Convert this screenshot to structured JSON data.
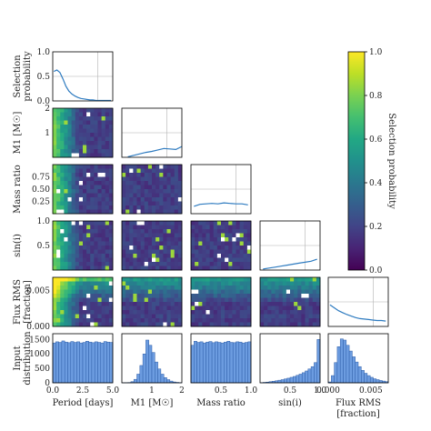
{
  "colors": {
    "line": "#2e7bc0",
    "bar_fill": "#6c9ce0",
    "bar_edge": "#2e5ea8",
    "grid": "#b0b0b0"
  },
  "chart_data": {
    "type": "corner",
    "variables": [
      {
        "key": "period",
        "label": "Period [days]",
        "range": [
          0,
          5
        ],
        "ticks": [
          "0.0",
          "2.5",
          "5.0"
        ]
      },
      {
        "key": "m1",
        "label": "M1 [M☉]",
        "range": [
          0,
          2
        ],
        "ticks": [
          "1",
          "2"
        ]
      },
      {
        "key": "q",
        "label": "Mass ratio",
        "range": [
          0,
          1
        ],
        "ticks": [
          "0.5",
          "1.0"
        ]
      },
      {
        "key": "sini",
        "label": "sin(i)",
        "range": [
          0,
          1
        ],
        "ticks": [
          "0.5",
          "1.0"
        ]
      },
      {
        "key": "frms",
        "label": "Flux RMS",
        "label2": "[fraction]",
        "range": [
          0,
          0.007
        ],
        "ticks": [
          "0.000",
          "0.005"
        ]
      }
    ],
    "diag_ylabel": {
      "line1": "Selection",
      "line2": "probability",
      "ticks": [
        "0.0",
        "0.5",
        "1.0"
      ]
    },
    "row_left_labels": {
      "m1": {
        "line1": "M1 [M☉]",
        "ticks": [
          "1",
          "2"
        ]
      },
      "q": {
        "line1": "Mass ratio",
        "ticks": [
          "0.25",
          "0.50",
          "0.75"
        ]
      },
      "sini": {
        "line1": "sin(i)",
        "ticks": [
          "0.5",
          "1.0"
        ]
      },
      "frms": {
        "line1": "Flux RMS",
        "line2": "[fraction]",
        "ticks": [
          "0.000",
          "0.005"
        ]
      }
    },
    "input_distribution": {
      "line1": "Input",
      "line2": "distribution",
      "ticks": [
        "0",
        "500",
        "1000",
        "1500"
      ]
    },
    "selection_curves": {
      "period": {
        "x": [
          0.1,
          0.35,
          0.6,
          0.85,
          1.1,
          1.35,
          1.6,
          1.85,
          2.1,
          2.35,
          2.6,
          2.85,
          3.1,
          3.35,
          3.6,
          3.85,
          4.1,
          4.35,
          4.6,
          4.85
        ],
        "y": [
          0.6,
          0.63,
          0.58,
          0.45,
          0.3,
          0.2,
          0.14,
          0.1,
          0.07,
          0.05,
          0.04,
          0.03,
          0.02,
          0.02,
          0.01,
          0.01,
          0.01,
          0.01,
          0.01,
          0.01
        ]
      },
      "m1": {
        "x": [
          0.2,
          0.4,
          0.6,
          0.8,
          1.0,
          1.2,
          1.4,
          1.6,
          1.8,
          2.0
        ],
        "y": [
          0.01,
          0.04,
          0.07,
          0.1,
          0.12,
          0.15,
          0.18,
          0.17,
          0.16,
          0.22
        ]
      },
      "q": {
        "x": [
          0.05,
          0.15,
          0.25,
          0.35,
          0.45,
          0.55,
          0.65,
          0.75,
          0.85,
          0.95
        ],
        "y": [
          0.15,
          0.19,
          0.2,
          0.21,
          0.2,
          0.22,
          0.21,
          0.2,
          0.2,
          0.18
        ]
      },
      "sini": {
        "x": [
          0.05,
          0.15,
          0.25,
          0.35,
          0.45,
          0.55,
          0.65,
          0.75,
          0.85,
          0.95
        ],
        "y": [
          0.02,
          0.04,
          0.06,
          0.08,
          0.1,
          0.12,
          0.14,
          0.16,
          0.18,
          0.22
        ]
      },
      "frms": {
        "x": [
          0.0002,
          0.0007,
          0.0012,
          0.0017,
          0.0022,
          0.0027,
          0.0032,
          0.0037,
          0.0042,
          0.0047,
          0.0052,
          0.0057,
          0.0062,
          0.0067
        ],
        "y": [
          0.44,
          0.38,
          0.32,
          0.28,
          0.24,
          0.21,
          0.18,
          0.16,
          0.15,
          0.14,
          0.13,
          0.12,
          0.12,
          0.11
        ]
      }
    },
    "input_histograms": {
      "period": [
        1380,
        1420,
        1400,
        1450,
        1410,
        1390,
        1430,
        1400,
        1420,
        1380,
        1400,
        1440,
        1410,
        1390,
        1420,
        1400,
        1380,
        1430,
        1410,
        1400
      ],
      "m1": [
        2,
        4,
        10,
        40,
        120,
        300,
        600,
        1000,
        1480,
        1300,
        1050,
        720,
        480,
        300,
        180,
        110,
        60,
        30,
        15,
        8
      ],
      "q": [
        1300,
        1440,
        1400,
        1420,
        1380,
        1410,
        1430,
        1390,
        1420,
        1400,
        1380,
        1410,
        1440,
        1400,
        1390,
        1420,
        1410,
        1380,
        1400,
        1420
      ],
      "sini": [
        5,
        15,
        25,
        40,
        55,
        70,
        90,
        110,
        135,
        160,
        190,
        220,
        260,
        300,
        350,
        410,
        480,
        560,
        700,
        1500
      ],
      "frms": [
        30,
        250,
        700,
        1250,
        1520,
        1480,
        1300,
        1100,
        900,
        720,
        560,
        430,
        330,
        250,
        190,
        140,
        110,
        80,
        60,
        40
      ]
    },
    "colorbar": {
      "label": "Selection probability",
      "range": [
        0,
        1
      ],
      "ticks": [
        "0.0",
        "0.2",
        "0.4",
        "0.6",
        "0.8",
        "1.0"
      ],
      "colormap": "viridis"
    }
  }
}
